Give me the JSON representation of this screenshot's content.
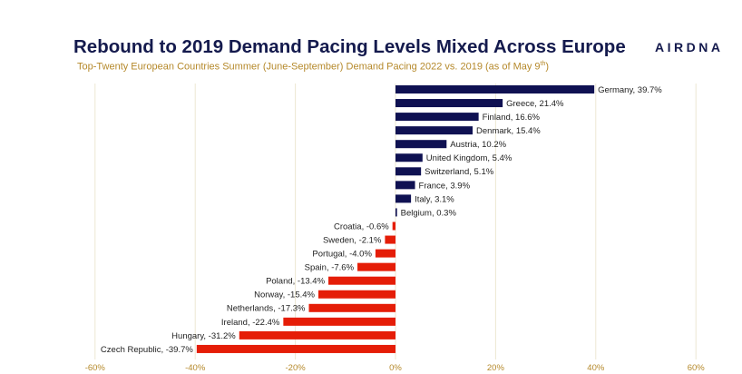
{
  "header": {
    "title": "Rebound to 2019 Demand Pacing Levels Mixed Across Europe",
    "subtitle_main": "Top-Twenty European Countries Summer (June-September) Demand Pacing 2022 vs. 2019 (as of May 9",
    "subtitle_sup": "th",
    "subtitle_end": ")",
    "logo": "AIRDNA"
  },
  "colors": {
    "positive": "#0f1152",
    "negative": "#e51d07",
    "grid": "#ece7d2",
    "tick": "#b5892b",
    "title": "#141a4d"
  },
  "chart_data": {
    "type": "bar",
    "orientation": "horizontal",
    "title": "Rebound to 2019 Demand Pacing Levels Mixed Across Europe",
    "subtitle": "Top-Twenty European Countries Summer (June-September) Demand Pacing 2022 vs. 2019 (as of May 9th)",
    "xlabel": "",
    "ylabel": "",
    "xlim": [
      -60,
      60
    ],
    "xticks": [
      -60,
      -40,
      -20,
      0,
      20,
      40,
      60
    ],
    "xtick_labels": [
      "-60%",
      "-40%",
      "-20%",
      "0%",
      "20%",
      "40%",
      "60%"
    ],
    "grid": "vertical",
    "categories": [
      "Germany",
      "Greece",
      "Finland",
      "Denmark",
      "Austria",
      "United Kingdom",
      "Switzerland",
      "France",
      "Italy",
      "Belgium",
      "Croatia",
      "Sweden",
      "Portugal",
      "Spain",
      "Poland",
      "Norway",
      "Netherlands",
      "Ireland",
      "Hungary",
      "Czech Republic"
    ],
    "values": [
      39.7,
      21.4,
      16.6,
      15.4,
      10.2,
      5.4,
      5.1,
      3.9,
      3.1,
      0.3,
      -0.6,
      -2.1,
      -4.0,
      -7.6,
      -13.4,
      -15.4,
      -17.3,
      -22.4,
      -31.2,
      -39.7
    ],
    "labels": [
      "Germany, 39.7%",
      "Greece, 21.4%",
      "Finland, 16.6%",
      "Denmark, 15.4%",
      "Austria, 10.2%",
      "United Kingdom, 5.4%",
      "Switzerland, 5.1%",
      "France, 3.9%",
      "Italy, 3.1%",
      "Belgium, 0.3%",
      "Croatia, -0.6%",
      "Sweden, -2.1%",
      "Portugal, -4.0%",
      "Spain, -7.6%",
      "Poland, -13.4%",
      "Norway, -15.4%",
      "Netherlands, -17.3%",
      "Ireland, -22.4%",
      "Hungary, -31.2%",
      "Czech Republic, -39.7%"
    ]
  }
}
